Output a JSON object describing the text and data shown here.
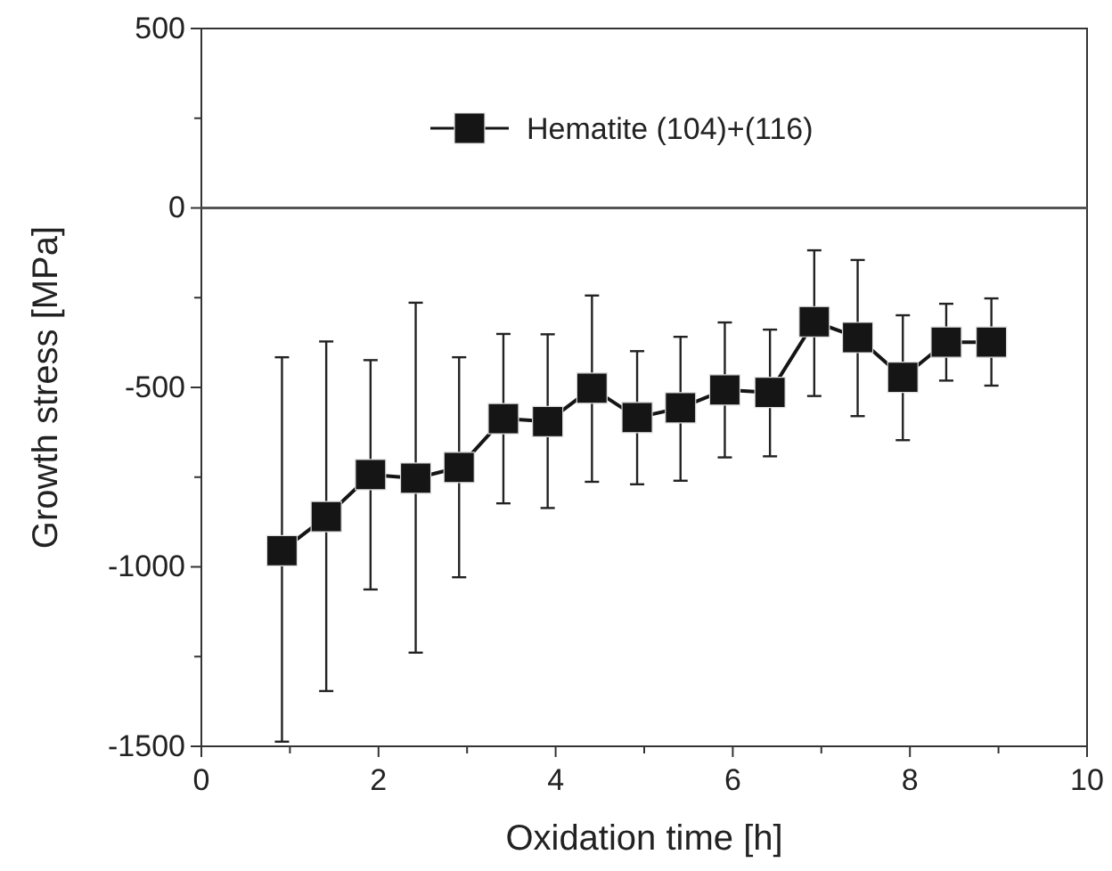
{
  "chart_data": {
    "type": "line",
    "xlabel": "Oxidation time [h]",
    "ylabel": "Growth stress [MPa]",
    "xlim": [
      0,
      10
    ],
    "xticks": [
      0,
      {
        "value": 1,
        "label": null
      },
      2,
      {
        "value": 3,
        "label": null
      },
      4,
      {
        "value": 5,
        "label": null
      },
      6,
      {
        "value": 7,
        "label": null
      },
      8,
      {
        "value": 9,
        "label": null
      },
      10
    ],
    "ylim": [
      -1500,
      500
    ],
    "yticks": [
      -1500,
      {
        "value": -1250,
        "label": null
      },
      -1000,
      {
        "value": -750,
        "label": null
      },
      -500,
      {
        "value": -250,
        "label": null
      },
      0,
      {
        "value": 250,
        "label": null
      },
      500
    ],
    "grid": false,
    "legend": "top",
    "marker": "square",
    "line_style": "solid",
    "ref_lines": [
      {
        "axis": "y",
        "value": 0,
        "color": "#555555"
      }
    ],
    "series": [
      {
        "name": "Hematite (104)+(116)",
        "color": "#151515",
        "x": [
          0.91,
          1.41,
          1.91,
          2.42,
          2.91,
          3.41,
          3.91,
          4.41,
          4.92,
          5.41,
          5.91,
          6.42,
          6.92,
          7.41,
          7.92,
          8.41,
          8.92
        ],
        "values": [
          -955,
          -860,
          -743,
          -753,
          -723,
          -587,
          -595,
          -502,
          -584,
          -557,
          -507,
          -514,
          -317,
          -361,
          -472,
          -374,
          -374
        ],
        "errors": [
          [
            -1487,
            -416
          ],
          [
            -1346,
            -372
          ],
          [
            -1063,
            -424
          ],
          [
            -1239,
            -264
          ],
          [
            -1029,
            -416
          ],
          [
            -823,
            -351
          ],
          [
            -836,
            -352
          ],
          [
            -763,
            -244
          ],
          [
            -770,
            -399
          ],
          [
            -760,
            -359
          ],
          [
            -695,
            -319
          ],
          [
            -692,
            -339
          ],
          [
            -524,
            -118
          ],
          [
            -580,
            -145
          ],
          [
            -647,
            -299
          ],
          [
            -481,
            -267
          ],
          [
            -495,
            -252
          ]
        ]
      }
    ]
  }
}
